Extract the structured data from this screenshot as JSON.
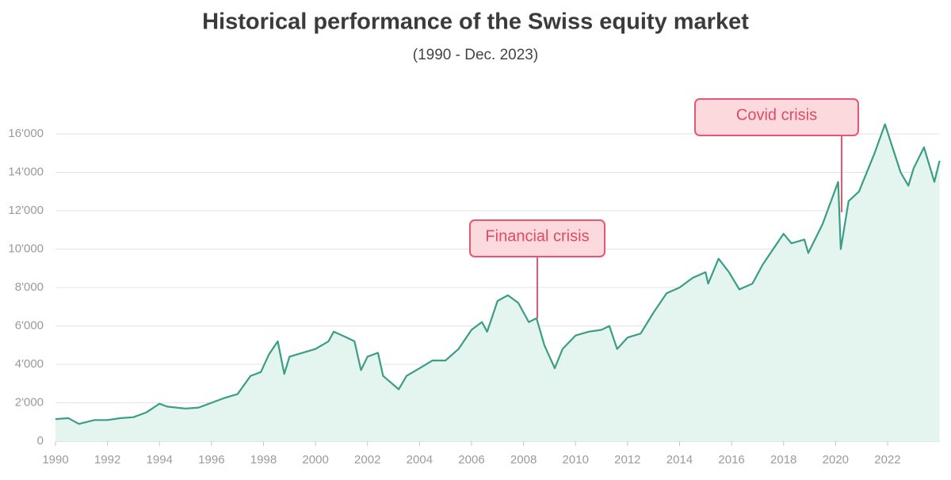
{
  "chart_data": {
    "type": "area",
    "title": "Historical performance of the Swiss equity market",
    "subtitle": "(1990 - Dec. 2023)",
    "annotations": [
      "Financial crisis",
      "Covid crisis"
    ],
    "color": "#3a9e85",
    "fill": "#e4f4ee",
    "grid": true,
    "xlim": [
      1990,
      2024
    ],
    "xticks": [
      1990,
      1992,
      1994,
      1996,
      1998,
      2000,
      2002,
      2004,
      2006,
      2008,
      2010,
      2012,
      2014,
      2016,
      2018,
      2020,
      2022
    ],
    "ylim": [
      0,
      18000
    ],
    "yticks": [
      0,
      {
        "value": 2000,
        "label": "2'000"
      },
      {
        "value": 4000,
        "label": "4'000"
      },
      {
        "value": 6000,
        "label": "6'000"
      },
      {
        "value": 8000,
        "label": "8'000"
      },
      {
        "value": 10000,
        "label": "10'000"
      },
      {
        "value": 12000,
        "label": "12'000"
      },
      {
        "value": 14000,
        "label": "14'000"
      },
      {
        "value": 16000,
        "label": "16'000"
      }
    ],
    "x": [
      1990,
      1990.5,
      1990.9,
      1991.5,
      1992,
      1992.5,
      1993,
      1993.5,
      1994,
      1994.3,
      1995,
      1995.5,
      1996,
      1996.5,
      1997,
      1997.5,
      1997.9,
      1998.2,
      1998.55,
      1998.8,
      1999,
      1999.5,
      2000,
      2000.5,
      2000.7,
      2001.2,
      2001.5,
      2001.75,
      2002,
      2002.4,
      2002.6,
      2003.2,
      2003.5,
      2004,
      2004.5,
      2005,
      2005.5,
      2006,
      2006.4,
      2006.6,
      2007,
      2007.4,
      2007.8,
      2008.2,
      2008.5,
      2008.8,
      2009.2,
      2009.5,
      2010,
      2010.5,
      2011,
      2011.3,
      2011.6,
      2012,
      2012.5,
      2013,
      2013.5,
      2014,
      2014.5,
      2015,
      2015.1,
      2015.5,
      2015.9,
      2016.3,
      2016.8,
      2017.2,
      2017.6,
      2018,
      2018.3,
      2018.8,
      2018.95,
      2019.5,
      2020.1,
      2020.2,
      2020.5,
      2020.9,
      2021.5,
      2021.9,
      2022.5,
      2022.8,
      2023,
      2023.4,
      2023.8,
      2024
    ],
    "values": [
      1150,
      1200,
      900,
      1100,
      1100,
      1200,
      1250,
      1500,
      1950,
      1800,
      1700,
      1750,
      2000,
      2250,
      2450,
      3400,
      3600,
      4500,
      5200,
      3500,
      4400,
      4600,
      4800,
      5200,
      5700,
      5400,
      5200,
      3700,
      4400,
      4600,
      3400,
      2700,
      3400,
      3800,
      4200,
      4200,
      4800,
      5800,
      6200,
      5700,
      7300,
      7600,
      7200,
      6200,
      6400,
      5000,
      3800,
      4800,
      5500,
      5700,
      5800,
      6000,
      4800,
      5400,
      5600,
      6700,
      7700,
      8000,
      8500,
      8800,
      8200,
      9500,
      8800,
      7900,
      8200,
      9200,
      10000,
      10800,
      10300,
      10500,
      9800,
      11300,
      13500,
      10000,
      12500,
      13000,
      15000,
      16500,
      14000,
      13300,
      14200,
      15300,
      13500,
      14600
    ]
  }
}
